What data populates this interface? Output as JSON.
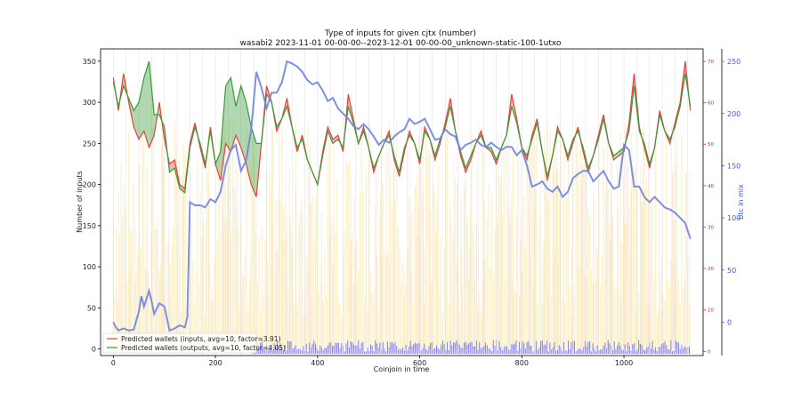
{
  "chart_data": {
    "type": "line",
    "title": "Type of inputs for given cjtx (number)",
    "subtitle": "wasabi2 2023-11-01 00-00-00--2023-12-01 00-00-00_unknown-static-100-1utxo",
    "xlabel": "Coinjoin in time",
    "ylabel": "Number of inputs",
    "y2label": "btc in mix",
    "xlim": [
      -25,
      1155
    ],
    "ylim": [
      -8,
      365
    ],
    "y3lim": [
      -1,
      73
    ],
    "y2lim": [
      -32,
      262
    ],
    "xticks": [
      0,
      200,
      400,
      600,
      800,
      1000
    ],
    "yticks": [
      0,
      50,
      100,
      150,
      200,
      250,
      300,
      350
    ],
    "y3ticks": [
      0,
      10,
      20,
      30,
      40,
      50,
      60,
      70
    ],
    "y2ticks": [
      0,
      50,
      100,
      150,
      200,
      250
    ],
    "grid": "vertical-lines",
    "legend_position": "lower-left",
    "colors": {
      "inputs": "#e8413a",
      "outputs": "#3a9a3a",
      "btc": "#6f84e0",
      "background_bars": "#f7e28a",
      "bottom_bars": "#4c4cff",
      "red_axis": "#cc2222",
      "blue_axis": "#3d5bd6"
    },
    "series": [
      {
        "name": "Predicted wallets (inputs, avg=10, factor=3.91)",
        "axis": "left",
        "x": [
          0,
          10,
          20,
          30,
          40,
          50,
          60,
          70,
          80,
          90,
          100,
          110,
          120,
          130,
          140,
          150,
          160,
          170,
          180,
          190,
          200,
          210,
          220,
          230,
          240,
          250,
          260,
          270,
          280,
          290,
          300,
          310,
          320,
          330,
          340,
          350,
          360,
          370,
          380,
          390,
          400,
          410,
          420,
          430,
          440,
          450,
          460,
          470,
          480,
          490,
          500,
          510,
          520,
          530,
          540,
          550,
          560,
          570,
          580,
          590,
          600,
          610,
          620,
          630,
          640,
          650,
          660,
          670,
          680,
          690,
          700,
          710,
          720,
          730,
          740,
          750,
          760,
          770,
          780,
          790,
          800,
          810,
          820,
          830,
          840,
          850,
          860,
          870,
          880,
          890,
          900,
          910,
          920,
          930,
          940,
          950,
          960,
          970,
          980,
          990,
          1000,
          1010,
          1020,
          1030,
          1040,
          1050,
          1060,
          1070,
          1080,
          1090,
          1100,
          1110,
          1120,
          1130
        ],
        "values": [
          330,
          290,
          335,
          300,
          270,
          255,
          265,
          245,
          260,
          300,
          255,
          225,
          230,
          200,
          195,
          250,
          275,
          245,
          220,
          270,
          225,
          205,
          250,
          240,
          260,
          245,
          225,
          200,
          185,
          250,
          320,
          300,
          265,
          280,
          305,
          270,
          240,
          260,
          230,
          215,
          200,
          240,
          270,
          255,
          260,
          240,
          310,
          280,
          250,
          270,
          245,
          215,
          235,
          250,
          265,
          230,
          210,
          240,
          265,
          250,
          225,
          270,
          255,
          230,
          250,
          275,
          305,
          265,
          235,
          215,
          230,
          250,
          265,
          245,
          240,
          225,
          245,
          260,
          310,
          280,
          245,
          230,
          260,
          280,
          240,
          205,
          235,
          270,
          255,
          230,
          250,
          270,
          240,
          215,
          235,
          260,
          285,
          250,
          230,
          235,
          240,
          275,
          335,
          270,
          245,
          220,
          245,
          290,
          265,
          250,
          275,
          300,
          350,
          290
        ]
      },
      {
        "name": "Predicted wallets (outputs, avg=10, factor=4.05)",
        "axis": "left",
        "x": [
          0,
          10,
          20,
          30,
          40,
          50,
          60,
          70,
          80,
          90,
          100,
          110,
          120,
          130,
          140,
          150,
          160,
          170,
          180,
          190,
          200,
          210,
          220,
          230,
          240,
          250,
          260,
          270,
          280,
          290,
          300,
          310,
          320,
          330,
          340,
          350,
          360,
          370,
          380,
          390,
          400,
          410,
          420,
          430,
          440,
          450,
          460,
          470,
          480,
          490,
          500,
          510,
          520,
          530,
          540,
          550,
          560,
          570,
          580,
          590,
          600,
          610,
          620,
          630,
          640,
          650,
          660,
          670,
          680,
          690,
          700,
          710,
          720,
          730,
          740,
          750,
          760,
          770,
          780,
          790,
          800,
          810,
          820,
          830,
          840,
          850,
          860,
          870,
          880,
          890,
          900,
          910,
          920,
          930,
          940,
          950,
          960,
          970,
          980,
          990,
          1000,
          1010,
          1020,
          1030,
          1040,
          1050,
          1060,
          1070,
          1080,
          1090,
          1100,
          1110,
          1120,
          1130
        ],
        "values": [
          325,
          295,
          320,
          305,
          290,
          300,
          330,
          350,
          285,
          285,
          270,
          215,
          220,
          195,
          190,
          245,
          270,
          250,
          225,
          265,
          225,
          240,
          320,
          330,
          295,
          320,
          300,
          270,
          250,
          250,
          310,
          300,
          270,
          280,
          295,
          270,
          245,
          255,
          230,
          215,
          200,
          235,
          265,
          250,
          255,
          245,
          295,
          275,
          250,
          265,
          245,
          220,
          235,
          250,
          260,
          235,
          215,
          245,
          260,
          250,
          230,
          265,
          255,
          235,
          255,
          270,
          295,
          265,
          240,
          220,
          235,
          250,
          260,
          245,
          245,
          230,
          245,
          260,
          295,
          275,
          245,
          235,
          255,
          275,
          240,
          210,
          235,
          265,
          255,
          235,
          255,
          265,
          245,
          220,
          235,
          255,
          280,
          250,
          235,
          240,
          245,
          265,
          320,
          265,
          250,
          225,
          245,
          285,
          265,
          255,
          270,
          295,
          335,
          295
        ]
      },
      {
        "name": "btc in mix",
        "axis": "right",
        "x": [
          0,
          5,
          10,
          20,
          30,
          40,
          50,
          55,
          60,
          70,
          75,
          80,
          90,
          100,
          110,
          120,
          130,
          140,
          145,
          150,
          160,
          170,
          180,
          190,
          200,
          210,
          220,
          230,
          240,
          250,
          260,
          270,
          280,
          290,
          300,
          310,
          320,
          330,
          340,
          350,
          360,
          370,
          380,
          390,
          400,
          410,
          420,
          430,
          440,
          450,
          460,
          470,
          480,
          490,
          500,
          510,
          520,
          530,
          540,
          550,
          560,
          570,
          580,
          590,
          600,
          610,
          620,
          630,
          640,
          650,
          660,
          670,
          680,
          690,
          700,
          710,
          720,
          730,
          740,
          750,
          760,
          770,
          780,
          790,
          800,
          810,
          820,
          830,
          840,
          850,
          860,
          870,
          880,
          890,
          900,
          910,
          920,
          930,
          940,
          950,
          960,
          970,
          980,
          990,
          1000,
          1010,
          1020,
          1030,
          1040,
          1050,
          1060,
          1070,
          1080,
          1090,
          1100,
          1110,
          1120,
          1130
        ],
        "values": [
          0,
          -5,
          -8,
          -6,
          -8,
          -7,
          10,
          25,
          15,
          30,
          20,
          8,
          18,
          15,
          -8,
          -6,
          -3,
          -5,
          5,
          115,
          112,
          112,
          110,
          118,
          115,
          125,
          150,
          165,
          170,
          145,
          155,
          185,
          240,
          225,
          205,
          220,
          220,
          230,
          250,
          248,
          245,
          240,
          232,
          228,
          230,
          222,
          212,
          215,
          205,
          200,
          195,
          188,
          185,
          190,
          185,
          178,
          170,
          175,
          172,
          178,
          182,
          185,
          195,
          190,
          192,
          195,
          185,
          175,
          176,
          185,
          180,
          178,
          165,
          170,
          172,
          175,
          170,
          168,
          172,
          168,
          165,
          168,
          168,
          160,
          165,
          150,
          130,
          132,
          135,
          128,
          125,
          130,
          120,
          125,
          138,
          142,
          145,
          145,
          135,
          140,
          145,
          135,
          128,
          130,
          170,
          165,
          130,
          130,
          120,
          115,
          120,
          115,
          110,
          108,
          105,
          100,
          95,
          80
        ]
      }
    ]
  },
  "legend": {
    "inputs_label": "Predicted wallets (inputs, avg=10, factor=3.91)",
    "outputs_label": "Predicted wallets (outputs, avg=10, factor=4.05)"
  }
}
